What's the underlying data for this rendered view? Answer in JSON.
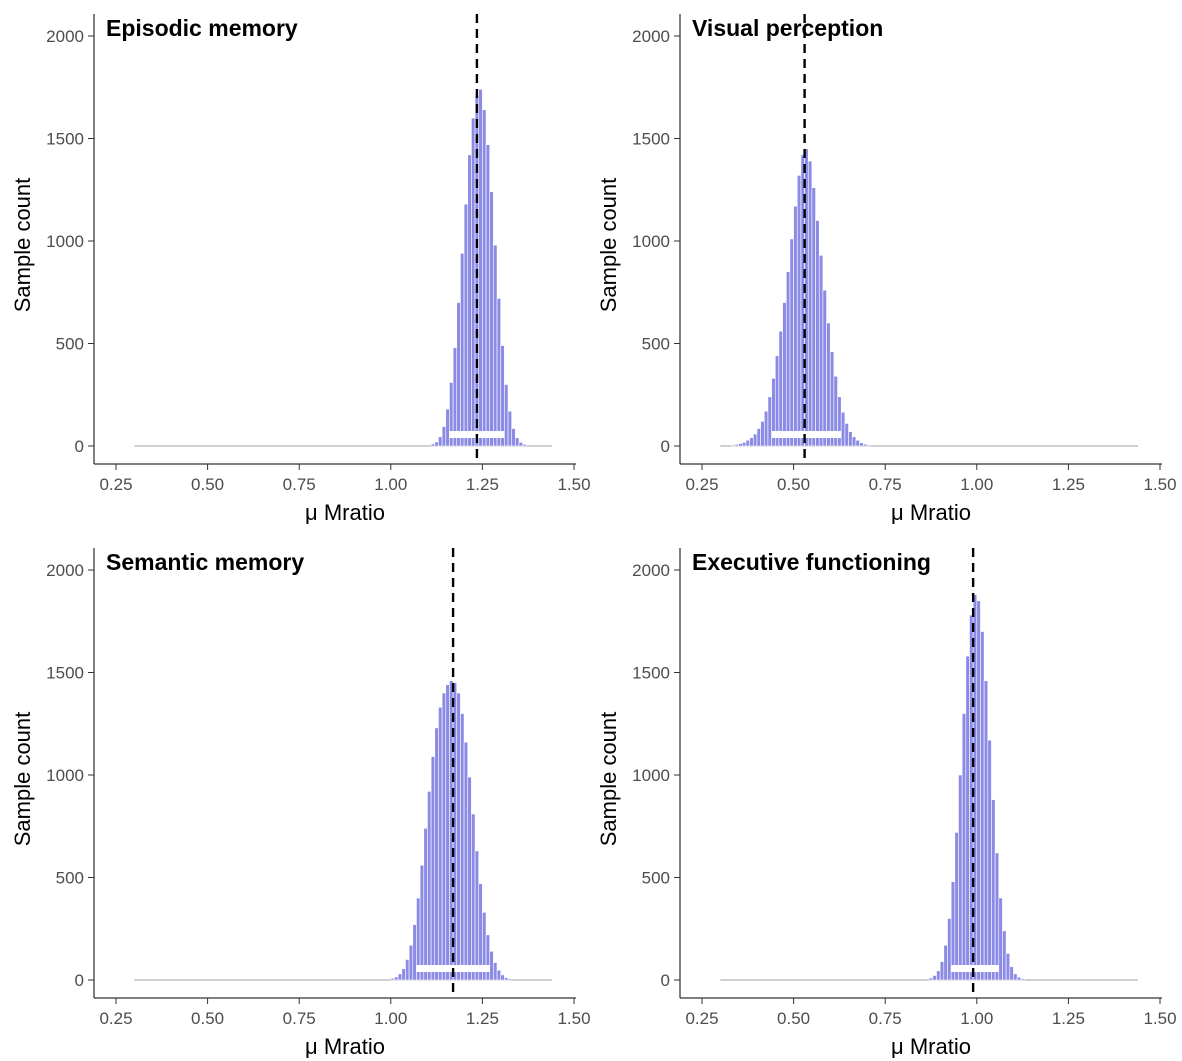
{
  "style": {
    "bar_fill": "#8b8be6",
    "bar_edge": "#ffffff",
    "hdi_color": "#ffffff",
    "baseline_color": "#b3b3b3",
    "mean_line_color": "#000000",
    "axis_color": "#000000"
  },
  "chart_data": [
    {
      "type": "bar",
      "title": "Episodic memory",
      "xlabel": "μ Mratio",
      "ylabel": "Sample count",
      "xlim": [
        0.25,
        1.5
      ],
      "ylim": [
        0,
        2000
      ],
      "x_ticks": [
        "0.25",
        "0.50",
        "0.75",
        "1.00",
        "1.25",
        "1.50"
      ],
      "y_ticks": [
        "0",
        "500",
        "1000",
        "1500",
        "2000"
      ],
      "grid": false,
      "mean": 1.235,
      "hdi": [
        1.16,
        1.31
      ],
      "baseline_range": [
        0.3,
        1.44
      ],
      "bin_width": 0.01,
      "bins": [
        [
          1.11,
          10
        ],
        [
          1.12,
          20
        ],
        [
          1.13,
          45
        ],
        [
          1.14,
          95
        ],
        [
          1.15,
          180
        ],
        [
          1.16,
          310
        ],
        [
          1.17,
          480
        ],
        [
          1.18,
          700
        ],
        [
          1.19,
          940
        ],
        [
          1.2,
          1180
        ],
        [
          1.21,
          1420
        ],
        [
          1.22,
          1600
        ],
        [
          1.23,
          1710
        ],
        [
          1.24,
          1740
        ],
        [
          1.25,
          1640
        ],
        [
          1.26,
          1470
        ],
        [
          1.27,
          1240
        ],
        [
          1.28,
          980
        ],
        [
          1.29,
          720
        ],
        [
          1.3,
          490
        ],
        [
          1.31,
          300
        ],
        [
          1.32,
          170
        ],
        [
          1.33,
          85
        ],
        [
          1.34,
          40
        ],
        [
          1.35,
          18
        ],
        [
          1.36,
          8
        ]
      ]
    },
    {
      "type": "bar",
      "title": "Visual perception",
      "xlabel": "μ Mratio",
      "ylabel": "Sample count",
      "xlim": [
        0.25,
        1.5
      ],
      "ylim": [
        0,
        2000
      ],
      "x_ticks": [
        "0.25",
        "0.50",
        "0.75",
        "1.00",
        "1.25",
        "1.50"
      ],
      "y_ticks": [
        "0",
        "500",
        "1000",
        "1500",
        "2000"
      ],
      "grid": false,
      "mean": 0.53,
      "hdi": [
        0.44,
        0.63
      ],
      "baseline_range": [
        0.3,
        1.44
      ],
      "bin_width": 0.01,
      "bins": [
        [
          0.33,
          5
        ],
        [
          0.34,
          8
        ],
        [
          0.35,
          12
        ],
        [
          0.36,
          18
        ],
        [
          0.37,
          28
        ],
        [
          0.38,
          40
        ],
        [
          0.39,
          58
        ],
        [
          0.4,
          85
        ],
        [
          0.41,
          120
        ],
        [
          0.42,
          170
        ],
        [
          0.43,
          240
        ],
        [
          0.44,
          330
        ],
        [
          0.45,
          440
        ],
        [
          0.46,
          560
        ],
        [
          0.47,
          700
        ],
        [
          0.48,
          850
        ],
        [
          0.49,
          1010
        ],
        [
          0.5,
          1170
        ],
        [
          0.51,
          1320
        ],
        [
          0.52,
          1420
        ],
        [
          0.53,
          1450
        ],
        [
          0.54,
          1390
        ],
        [
          0.55,
          1260
        ],
        [
          0.56,
          1100
        ],
        [
          0.57,
          930
        ],
        [
          0.58,
          760
        ],
        [
          0.59,
          600
        ],
        [
          0.6,
          460
        ],
        [
          0.61,
          340
        ],
        [
          0.62,
          240
        ],
        [
          0.63,
          165
        ],
        [
          0.64,
          110
        ],
        [
          0.65,
          70
        ],
        [
          0.66,
          45
        ],
        [
          0.67,
          28
        ],
        [
          0.68,
          16
        ],
        [
          0.69,
          9
        ],
        [
          0.7,
          5
        ]
      ]
    },
    {
      "type": "bar",
      "title": "Semantic memory",
      "xlabel": "μ Mratio",
      "ylabel": "Sample count",
      "xlim": [
        0.25,
        1.5
      ],
      "ylim": [
        0,
        2000
      ],
      "x_ticks": [
        "0.25",
        "0.50",
        "0.75",
        "1.00",
        "1.25",
        "1.50"
      ],
      "y_ticks": [
        "0",
        "500",
        "1000",
        "1500",
        "2000"
      ],
      "grid": false,
      "mean": 1.17,
      "hdi": [
        1.07,
        1.27
      ],
      "baseline_range": [
        0.3,
        1.44
      ],
      "bin_width": 0.01,
      "bins": [
        [
          1.0,
          8
        ],
        [
          1.01,
          15
        ],
        [
          1.02,
          30
        ],
        [
          1.03,
          55
        ],
        [
          1.04,
          100
        ],
        [
          1.05,
          170
        ],
        [
          1.06,
          270
        ],
        [
          1.07,
          400
        ],
        [
          1.08,
          560
        ],
        [
          1.09,
          740
        ],
        [
          1.1,
          920
        ],
        [
          1.11,
          1090
        ],
        [
          1.12,
          1230
        ],
        [
          1.13,
          1330
        ],
        [
          1.14,
          1400
        ],
        [
          1.15,
          1440
        ],
        [
          1.16,
          1460
        ],
        [
          1.17,
          1450
        ],
        [
          1.18,
          1400
        ],
        [
          1.19,
          1300
        ],
        [
          1.2,
          1160
        ],
        [
          1.21,
          990
        ],
        [
          1.22,
          810
        ],
        [
          1.23,
          630
        ],
        [
          1.24,
          470
        ],
        [
          1.25,
          330
        ],
        [
          1.26,
          220
        ],
        [
          1.27,
          140
        ],
        [
          1.28,
          85
        ],
        [
          1.29,
          48
        ],
        [
          1.3,
          25
        ],
        [
          1.31,
          12
        ],
        [
          1.32,
          6
        ]
      ]
    },
    {
      "type": "bar",
      "title": "Executive functioning",
      "xlabel": "μ Mratio",
      "ylabel": "Sample count",
      "xlim": [
        0.25,
        1.5
      ],
      "ylim": [
        0,
        2000
      ],
      "x_ticks": [
        "0.25",
        "0.50",
        "0.75",
        "1.00",
        "1.25",
        "1.50"
      ],
      "y_ticks": [
        "0",
        "500",
        "1000",
        "1500",
        "2000"
      ],
      "grid": false,
      "mean": 0.99,
      "hdi": [
        0.93,
        1.06
      ],
      "baseline_range": [
        0.3,
        1.44
      ],
      "bin_width": 0.01,
      "bins": [
        [
          0.87,
          10
        ],
        [
          0.88,
          22
        ],
        [
          0.89,
          45
        ],
        [
          0.9,
          90
        ],
        [
          0.91,
          170
        ],
        [
          0.92,
          300
        ],
        [
          0.93,
          480
        ],
        [
          0.94,
          720
        ],
        [
          0.95,
          1000
        ],
        [
          0.96,
          1300
        ],
        [
          0.97,
          1580
        ],
        [
          0.98,
          1780
        ],
        [
          0.99,
          1880
        ],
        [
          1.0,
          1850
        ],
        [
          1.01,
          1700
        ],
        [
          1.02,
          1460
        ],
        [
          1.03,
          1170
        ],
        [
          1.04,
          880
        ],
        [
          1.05,
          620
        ],
        [
          1.06,
          400
        ],
        [
          1.07,
          240
        ],
        [
          1.08,
          130
        ],
        [
          1.09,
          65
        ],
        [
          1.1,
          30
        ],
        [
          1.11,
          14
        ],
        [
          1.12,
          6
        ]
      ]
    }
  ]
}
